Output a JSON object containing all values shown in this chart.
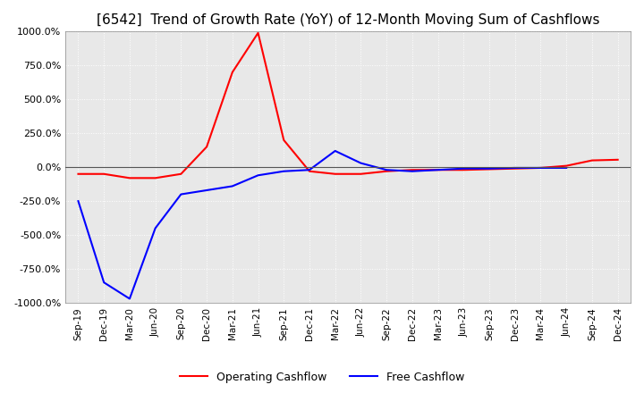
{
  "title": "[6542]  Trend of Growth Rate (YoY) of 12-Month Moving Sum of Cashflows",
  "title_fontsize": 11,
  "title_fontweight": "normal",
  "background_color": "#ffffff",
  "plot_background_color": "#e8e8e8",
  "grid_color": "#ffffff",
  "ylim": [
    -1000,
    1000
  ],
  "yticks": [
    -1000,
    -750,
    -500,
    -250,
    0,
    250,
    500,
    750,
    1000
  ],
  "ytick_labels": [
    "-1000.0%",
    "-750.0%",
    "-500.0%",
    "-250.0%",
    "0.0%",
    "250.0%",
    "500.0%",
    "750.0%",
    "1000.0%"
  ],
  "x_labels": [
    "Sep-19",
    "Dec-19",
    "Mar-20",
    "Jun-20",
    "Sep-20",
    "Dec-20",
    "Mar-21",
    "Jun-21",
    "Sep-21",
    "Dec-21",
    "Mar-22",
    "Jun-22",
    "Sep-22",
    "Dec-22",
    "Mar-23",
    "Jun-23",
    "Sep-23",
    "Dec-23",
    "Mar-24",
    "Jun-24",
    "Sep-24",
    "Dec-24"
  ],
  "operating_cashflow": [
    -50,
    -50,
    -80,
    -80,
    -50,
    150,
    700,
    990,
    200,
    -30,
    -50,
    -50,
    -30,
    -20,
    -20,
    -20,
    -15,
    -10,
    -5,
    10,
    50,
    55
  ],
  "free_cashflow": [
    -250,
    -850,
    -970,
    -450,
    -200,
    -170,
    -140,
    -60,
    -30,
    -20,
    120,
    30,
    -20,
    -30,
    -20,
    -10,
    -10,
    -5,
    -5,
    -5,
    null,
    null
  ],
  "operating_color": "#ff0000",
  "free_color": "#0000ff",
  "line_width": 1.5,
  "legend_ncol": 2,
  "legend_fontsize": 9
}
